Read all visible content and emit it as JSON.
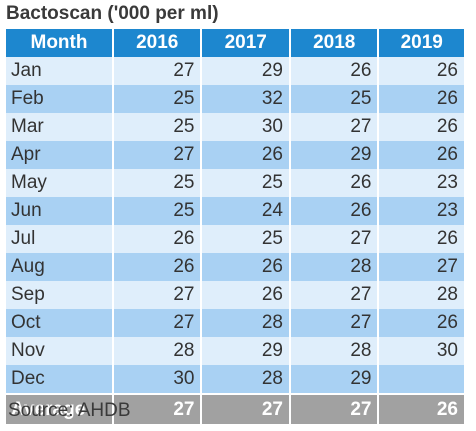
{
  "title": "Bactoscan ('000 per ml)",
  "source": "Source: AHDB",
  "colors": {
    "header": "#1d87cf",
    "row_light": "#dfeefb",
    "row_dark": "#a9d1f3",
    "average": "#a1a1a1"
  },
  "chart_data": {
    "type": "table",
    "title": "Bactoscan ('000 per ml)",
    "columns": [
      "Month",
      "2016",
      "2017",
      "2018",
      "2019"
    ],
    "rows": [
      [
        "Jan",
        "27",
        "29",
        "26",
        "26"
      ],
      [
        "Feb",
        "25",
        "32",
        "25",
        "26"
      ],
      [
        "Mar",
        "25",
        "30",
        "27",
        "26"
      ],
      [
        "Apr",
        "27",
        "26",
        "29",
        "26"
      ],
      [
        "May",
        "25",
        "25",
        "26",
        "23"
      ],
      [
        "Jun",
        "25",
        "24",
        "26",
        "23"
      ],
      [
        "Jul",
        "26",
        "25",
        "27",
        "26"
      ],
      [
        "Aug",
        "26",
        "26",
        "28",
        "27"
      ],
      [
        "Sep",
        "27",
        "26",
        "27",
        "28"
      ],
      [
        "Oct",
        "27",
        "28",
        "27",
        "26"
      ],
      [
        "Nov",
        "28",
        "29",
        "28",
        "30"
      ],
      [
        "Dec",
        "30",
        "28",
        "29",
        ""
      ]
    ],
    "average": [
      "Average",
      "27",
      "27",
      "27",
      "26"
    ]
  }
}
